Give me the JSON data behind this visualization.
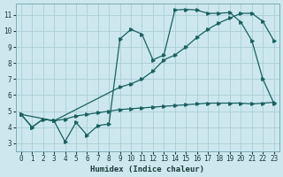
{
  "xlabel": "Humidex (Indice chaleur)",
  "bg_color": "#cce8ee",
  "grid_color": "#aacdd6",
  "line_color": "#1a6060",
  "xlim": [
    -0.5,
    23.5
  ],
  "ylim": [
    2.5,
    11.7
  ],
  "xticks": [
    0,
    1,
    2,
    3,
    4,
    5,
    6,
    7,
    8,
    9,
    10,
    11,
    12,
    13,
    14,
    15,
    16,
    17,
    18,
    19,
    20,
    21,
    22,
    23
  ],
  "yticks": [
    3,
    4,
    5,
    6,
    7,
    8,
    9,
    10,
    11
  ],
  "series_jagged_x": [
    0,
    1,
    2,
    3,
    4,
    5,
    6,
    7,
    8,
    9,
    10,
    11,
    12,
    13,
    14,
    15,
    16,
    17,
    18,
    19,
    20,
    21,
    22,
    23
  ],
  "series_jagged_y": [
    4.8,
    4.0,
    4.5,
    4.4,
    3.1,
    4.3,
    3.5,
    4.1,
    4.2,
    9.5,
    10.1,
    9.8,
    8.2,
    8.5,
    11.3,
    11.35,
    11.3,
    11.1,
    11.1,
    11.15,
    10.55,
    9.4,
    7.0,
    5.5
  ],
  "series_smooth_x": [
    0,
    3,
    9,
    10,
    11,
    12,
    13,
    14,
    15,
    16,
    17,
    18,
    19,
    20,
    21,
    22,
    23
  ],
  "series_smooth_y": [
    4.8,
    4.4,
    6.5,
    6.7,
    7.0,
    7.5,
    8.2,
    8.5,
    9.0,
    9.6,
    10.1,
    10.5,
    10.8,
    11.1,
    11.1,
    10.6,
    9.4
  ],
  "series_flat_x": [
    0,
    1,
    2,
    3,
    4,
    5,
    6,
    7,
    8,
    9,
    10,
    11,
    12,
    13,
    14,
    15,
    16,
    17,
    18,
    19,
    20,
    21,
    22,
    23
  ],
  "series_flat_y": [
    4.8,
    4.0,
    4.5,
    4.4,
    4.5,
    4.7,
    4.8,
    4.9,
    5.0,
    5.1,
    5.15,
    5.2,
    5.25,
    5.3,
    5.35,
    5.4,
    5.45,
    5.5,
    5.5,
    5.5,
    5.5,
    5.45,
    5.5,
    5.55
  ]
}
